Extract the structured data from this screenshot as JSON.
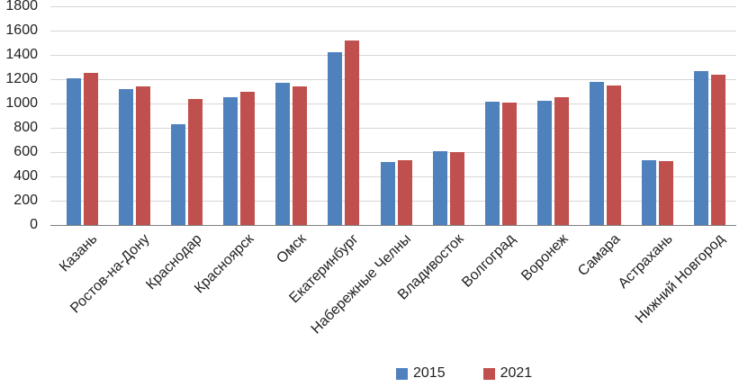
{
  "chart_data": {
    "type": "bar",
    "title": "",
    "xlabel": "",
    "ylabel": "",
    "categories": [
      "Казань",
      "Ростов-на-Дону",
      "Краснодар",
      "Красноярск",
      "Омск",
      "Екатеринбург",
      "Набережные Челны",
      "Владивосток",
      "Волгоград",
      "Воронеж",
      "Самара",
      "Астрахань",
      "Нижний Новгород"
    ],
    "series": [
      {
        "name": "2015",
        "color": "#4F81BD",
        "values": [
          1205,
          1115,
          830,
          1050,
          1170,
          1425,
          520,
          605,
          1015,
          1025,
          1175,
          535,
          1270
        ]
      },
      {
        "name": "2021",
        "color": "#C0504D",
        "values": [
          1255,
          1140,
          1035,
          1100,
          1140,
          1520,
          535,
          600,
          1005,
          1050,
          1145,
          525,
          1240
        ]
      }
    ],
    "ylim": [
      0,
      1800
    ],
    "yticks": [
      0,
      200,
      400,
      600,
      800,
      1000,
      1200,
      1400,
      1600,
      1800
    ],
    "grid": true,
    "legend_position": "bottom"
  },
  "colors": {
    "series_2015": "#4F81BD",
    "series_2021": "#C0504D",
    "gridline": "#D6D6D6",
    "axis_line": "#808080",
    "text": "#1F1F1F",
    "background": "#FFFFFF"
  }
}
